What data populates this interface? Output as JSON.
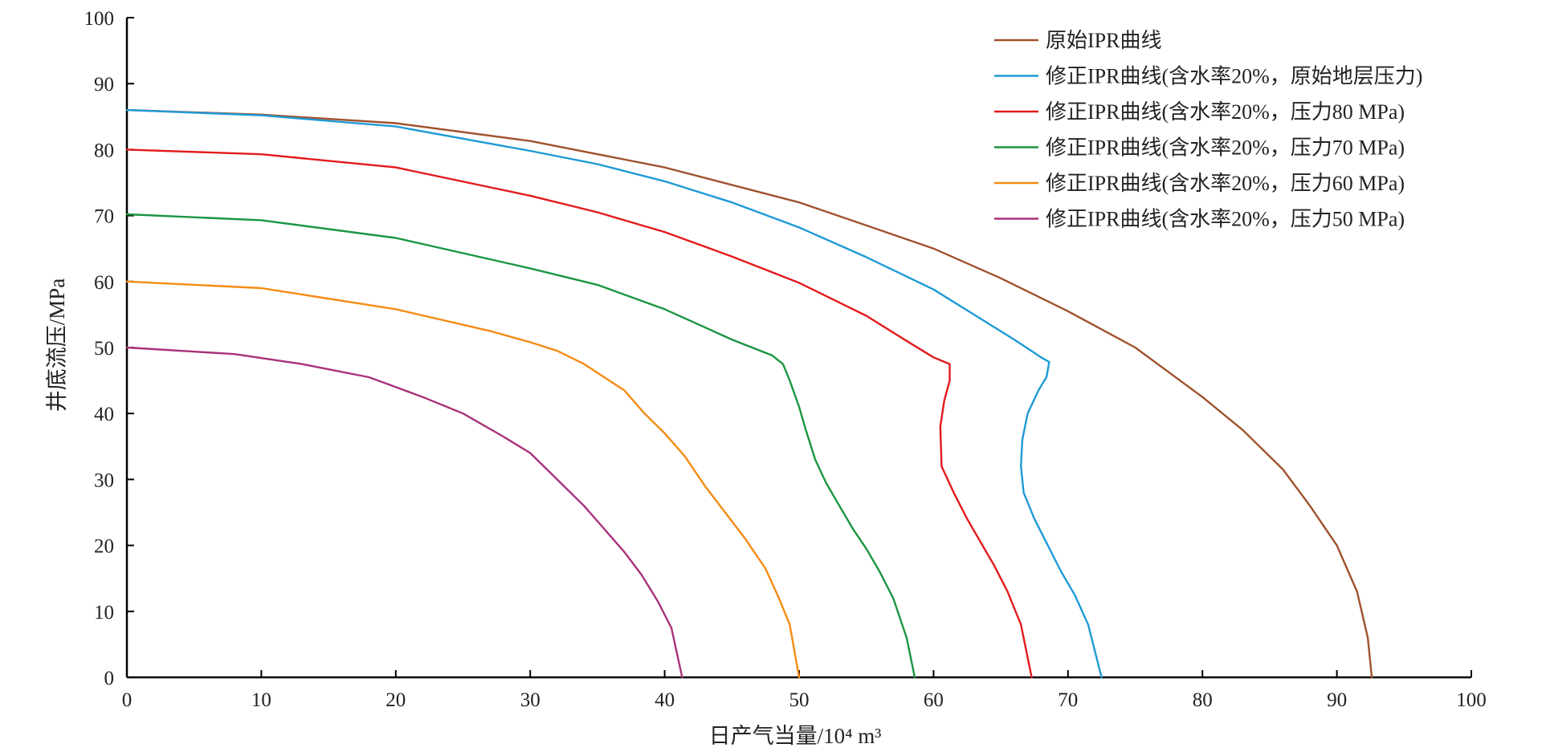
{
  "chart_data": {
    "type": "line",
    "xlabel": "日产气当量/10⁴ m³",
    "ylabel": "井底流压/MPa",
    "xlim": [
      0,
      100
    ],
    "ylim": [
      0,
      100
    ],
    "xticks": [
      0,
      10,
      20,
      30,
      40,
      50,
      60,
      70,
      80,
      90,
      100
    ],
    "yticks": [
      0,
      10,
      20,
      30,
      40,
      50,
      60,
      70,
      80,
      90,
      100
    ],
    "grid": false,
    "legend_position": "top-right",
    "series": [
      {
        "name": "原始IPR曲线",
        "color": "#a0522d",
        "points": [
          [
            0,
            86
          ],
          [
            10,
            85.3
          ],
          [
            20,
            84
          ],
          [
            30,
            81.3
          ],
          [
            40,
            77.3
          ],
          [
            50,
            72
          ],
          [
            55,
            68.5
          ],
          [
            60,
            65
          ],
          [
            65,
            60.5
          ],
          [
            70,
            55.5
          ],
          [
            75,
            50
          ],
          [
            80,
            42.5
          ],
          [
            83,
            37.5
          ],
          [
            86,
            31.5
          ],
          [
            88,
            26
          ],
          [
            90,
            20
          ],
          [
            91.5,
            13
          ],
          [
            92.3,
            6
          ],
          [
            92.6,
            0
          ]
        ]
      },
      {
        "name": "修正IPR曲线(含水率20%，原始地层压力)",
        "color": "#1e9ad6",
        "points": [
          [
            0,
            86
          ],
          [
            10,
            85.2
          ],
          [
            20,
            83.5
          ],
          [
            30,
            79.8
          ],
          [
            35,
            77.8
          ],
          [
            40,
            75.2
          ],
          [
            45,
            72
          ],
          [
            50,
            68.2
          ],
          [
            55,
            63.7
          ],
          [
            60,
            58.8
          ],
          [
            63,
            55
          ],
          [
            66,
            51.2
          ],
          [
            68,
            48.5
          ],
          [
            68.6,
            47.8
          ],
          [
            68.4,
            45.5
          ],
          [
            67.8,
            43.5
          ],
          [
            67,
            40
          ],
          [
            66.6,
            36
          ],
          [
            66.5,
            32
          ],
          [
            66.7,
            28
          ],
          [
            67.5,
            24
          ],
          [
            68.5,
            20
          ],
          [
            69.5,
            16
          ],
          [
            70.5,
            12.5
          ],
          [
            71.5,
            8
          ],
          [
            72.5,
            0
          ]
        ]
      },
      {
        "name": "修正IPR曲线(含水率20%，压力80 MPa)",
        "color": "#e31a1c",
        "points": [
          [
            0,
            80
          ],
          [
            10,
            79.3
          ],
          [
            20,
            77.3
          ],
          [
            30,
            73
          ],
          [
            35,
            70.5
          ],
          [
            40,
            67.5
          ],
          [
            45,
            63.8
          ],
          [
            50,
            59.8
          ],
          [
            55,
            54.8
          ],
          [
            58,
            51
          ],
          [
            60,
            48.5
          ],
          [
            61.2,
            47.5
          ],
          [
            61.2,
            45
          ],
          [
            60.8,
            42
          ],
          [
            60.5,
            38
          ],
          [
            60.6,
            32
          ],
          [
            61.5,
            28
          ],
          [
            62.5,
            24
          ],
          [
            63.5,
            20.5
          ],
          [
            64.5,
            17
          ],
          [
            65.5,
            13
          ],
          [
            66.5,
            8
          ],
          [
            67.3,
            0
          ]
        ]
      },
      {
        "name": "修正IPR曲线(含水率20%，压力70 MPa)",
        "color": "#1a9641",
        "points": [
          [
            0,
            70.2
          ],
          [
            10,
            69.3
          ],
          [
            20,
            66.6
          ],
          [
            30,
            62
          ],
          [
            35,
            59.5
          ],
          [
            40,
            55.8
          ],
          [
            45,
            51.2
          ],
          [
            48,
            48.8
          ],
          [
            48.8,
            47.5
          ],
          [
            49.3,
            45
          ],
          [
            50,
            41
          ],
          [
            50.5,
            37.5
          ],
          [
            51.2,
            33
          ],
          [
            52,
            29.5
          ],
          [
            53,
            26
          ],
          [
            54,
            22.5
          ],
          [
            55,
            19.5
          ],
          [
            56,
            16
          ],
          [
            57,
            12
          ],
          [
            58,
            6
          ],
          [
            58.6,
            0
          ]
        ]
      },
      {
        "name": "修正IPR曲线(含水率20%，压力60 MPa)",
        "color": "#f58b14",
        "points": [
          [
            0,
            60
          ],
          [
            10,
            59
          ],
          [
            20,
            55.8
          ],
          [
            27,
            52.5
          ],
          [
            30,
            50.8
          ],
          [
            32,
            49.5
          ],
          [
            34,
            47.5
          ],
          [
            35.5,
            45.5
          ],
          [
            37,
            43.5
          ],
          [
            38.5,
            40
          ],
          [
            40,
            37
          ],
          [
            41.5,
            33.5
          ],
          [
            43,
            29
          ],
          [
            44.5,
            25
          ],
          [
            46,
            21
          ],
          [
            47.5,
            16.5
          ],
          [
            48.5,
            12
          ],
          [
            49.3,
            8
          ],
          [
            50,
            0
          ]
        ]
      },
      {
        "name": "修正IPR曲线(含水率20%，压力50 MPa)",
        "color": "#a83279",
        "points": [
          [
            0,
            50
          ],
          [
            8,
            49
          ],
          [
            13,
            47.5
          ],
          [
            18,
            45.5
          ],
          [
            20,
            44
          ],
          [
            22,
            42.5
          ],
          [
            25,
            40
          ],
          [
            28,
            36.5
          ],
          [
            30,
            34
          ],
          [
            32,
            30
          ],
          [
            34,
            26
          ],
          [
            35.5,
            22.5
          ],
          [
            37,
            19
          ],
          [
            38.3,
            15.5
          ],
          [
            39.5,
            11.5
          ],
          [
            40.5,
            7.5
          ],
          [
            41.3,
            0
          ]
        ]
      }
    ]
  }
}
